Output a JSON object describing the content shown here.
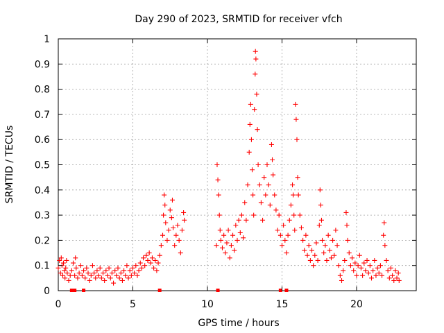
{
  "chart_data": {
    "type": "scatter",
    "title": "Day 290 of 2023, SRMTID for receiver vfch",
    "xlabel": "GPS time / hours",
    "ylabel": "SRMTID / TECUs",
    "xlim": [
      0,
      24
    ],
    "ylim": [
      0,
      1
    ],
    "x_ticks": [
      0,
      5,
      10,
      15,
      20
    ],
    "x_tick_labels": [
      "0",
      "5",
      "10",
      "15",
      "20"
    ],
    "y_ticks": [
      0,
      0.1,
      0.2,
      0.3,
      0.4,
      0.5,
      0.6,
      0.7,
      0.8,
      0.9,
      1
    ],
    "y_tick_labels": [
      "0",
      "0.1",
      "0.2",
      "0.3",
      "0.4",
      "0.5",
      "0.6",
      "0.7",
      "0.8",
      "0.9",
      "1"
    ],
    "grid": true,
    "marker": "+",
    "color": "#ff0000",
    "series": [
      {
        "name": "SRMTID",
        "points": [
          [
            0.0,
            0.09
          ],
          [
            0.08,
            0.12
          ],
          [
            0.15,
            0.07
          ],
          [
            0.2,
            0.13
          ],
          [
            0.25,
            0.1
          ],
          [
            0.3,
            0.06
          ],
          [
            0.35,
            0.11
          ],
          [
            0.4,
            0.08
          ],
          [
            0.45,
            0.05
          ],
          [
            0.5,
            0.09
          ],
          [
            0.55,
            0.12
          ],
          [
            0.6,
            0.07
          ],
          [
            0.7,
            0.04
          ],
          [
            0.8,
            0.06
          ],
          [
            0.9,
            0.08
          ],
          [
            1.0,
            0.11
          ],
          [
            1.1,
            0.06
          ],
          [
            1.15,
            0.13
          ],
          [
            1.2,
            0.09
          ],
          [
            1.3,
            0.05
          ],
          [
            1.4,
            0.07
          ],
          [
            1.5,
            0.1
          ],
          [
            1.6,
            0.06
          ],
          [
            1.7,
            0.08
          ],
          [
            1.8,
            0.05
          ],
          [
            1.9,
            0.09
          ],
          [
            2.0,
            0.07
          ],
          [
            2.1,
            0.04
          ],
          [
            2.2,
            0.06
          ],
          [
            2.3,
            0.1
          ],
          [
            2.4,
            0.07
          ],
          [
            2.5,
            0.05
          ],
          [
            2.6,
            0.08
          ],
          [
            2.7,
            0.06
          ],
          [
            2.8,
            0.09
          ],
          [
            2.9,
            0.05
          ],
          [
            3.0,
            0.07
          ],
          [
            3.1,
            0.04
          ],
          [
            3.2,
            0.08
          ],
          [
            3.3,
            0.06
          ],
          [
            3.4,
            0.09
          ],
          [
            3.5,
            0.05
          ],
          [
            3.6,
            0.07
          ],
          [
            3.7,
            0.03
          ],
          [
            3.8,
            0.08
          ],
          [
            3.9,
            0.06
          ],
          [
            4.0,
            0.09
          ],
          [
            4.1,
            0.05
          ],
          [
            4.2,
            0.07
          ],
          [
            4.3,
            0.04
          ],
          [
            4.4,
            0.08
          ],
          [
            4.5,
            0.06
          ],
          [
            4.6,
            0.1
          ],
          [
            4.7,
            0.05
          ],
          [
            4.8,
            0.08
          ],
          [
            4.9,
            0.06
          ],
          [
            5.0,
            0.09
          ],
          [
            5.1,
            0.07
          ],
          [
            5.2,
            0.1
          ],
          [
            5.3,
            0.06
          ],
          [
            5.4,
            0.08
          ],
          [
            5.5,
            0.11
          ],
          [
            5.6,
            0.09
          ],
          [
            5.7,
            0.13
          ],
          [
            5.8,
            0.1
          ],
          [
            5.9,
            0.14
          ],
          [
            6.0,
            0.12
          ],
          [
            6.1,
            0.15
          ],
          [
            6.2,
            0.11
          ],
          [
            6.3,
            0.13
          ],
          [
            6.4,
            0.09
          ],
          [
            6.5,
            0.12
          ],
          [
            6.6,
            0.08
          ],
          [
            6.7,
            0.11
          ],
          [
            6.8,
            0.14
          ],
          [
            6.9,
            0.18
          ],
          [
            7.0,
            0.22
          ],
          [
            7.05,
            0.3
          ],
          [
            7.1,
            0.38
          ],
          [
            7.15,
            0.34
          ],
          [
            7.2,
            0.27
          ],
          [
            7.3,
            0.2
          ],
          [
            7.4,
            0.24
          ],
          [
            7.5,
            0.32
          ],
          [
            7.6,
            0.29
          ],
          [
            7.65,
            0.36
          ],
          [
            7.7,
            0.25
          ],
          [
            7.8,
            0.18
          ],
          [
            7.9,
            0.22
          ],
          [
            8.0,
            0.26
          ],
          [
            8.1,
            0.2
          ],
          [
            8.2,
            0.15
          ],
          [
            8.3,
            0.24
          ],
          [
            8.4,
            0.31
          ],
          [
            8.45,
            0.28
          ],
          [
            10.6,
            0.18
          ],
          [
            10.65,
            0.5
          ],
          [
            10.7,
            0.44
          ],
          [
            10.75,
            0.38
          ],
          [
            10.8,
            0.3
          ],
          [
            10.85,
            0.24
          ],
          [
            10.9,
            0.2
          ],
          [
            11.0,
            0.17
          ],
          [
            11.1,
            0.22
          ],
          [
            11.2,
            0.15
          ],
          [
            11.3,
            0.19
          ],
          [
            11.4,
            0.24
          ],
          [
            11.5,
            0.13
          ],
          [
            11.6,
            0.18
          ],
          [
            11.7,
            0.22
          ],
          [
            11.8,
            0.16
          ],
          [
            11.9,
            0.26
          ],
          [
            12.0,
            0.2
          ],
          [
            12.1,
            0.28
          ],
          [
            12.2,
            0.23
          ],
          [
            12.3,
            0.3
          ],
          [
            12.4,
            0.21
          ],
          [
            12.5,
            0.35
          ],
          [
            12.6,
            0.28
          ],
          [
            12.7,
            0.42
          ],
          [
            12.8,
            0.55
          ],
          [
            12.85,
            0.66
          ],
          [
            12.9,
            0.74
          ],
          [
            12.95,
            0.6
          ],
          [
            13.0,
            0.48
          ],
          [
            13.05,
            0.38
          ],
          [
            13.1,
            0.3
          ],
          [
            13.15,
            0.72
          ],
          [
            13.2,
            0.86
          ],
          [
            13.22,
            0.95
          ],
          [
            13.25,
            0.92
          ],
          [
            13.3,
            0.78
          ],
          [
            13.35,
            0.64
          ],
          [
            13.4,
            0.5
          ],
          [
            13.5,
            0.42
          ],
          [
            13.6,
            0.35
          ],
          [
            13.7,
            0.28
          ],
          [
            13.8,
            0.45
          ],
          [
            13.9,
            0.38
          ],
          [
            14.0,
            0.5
          ],
          [
            14.1,
            0.42
          ],
          [
            14.2,
            0.34
          ],
          [
            14.3,
            0.58
          ],
          [
            14.35,
            0.52
          ],
          [
            14.4,
            0.46
          ],
          [
            14.5,
            0.38
          ],
          [
            14.6,
            0.32
          ],
          [
            14.7,
            0.24
          ],
          [
            14.8,
            0.3
          ],
          [
            14.9,
            0.22
          ],
          [
            15.0,
            0.18
          ],
          [
            15.1,
            0.26
          ],
          [
            15.2,
            0.2
          ],
          [
            15.3,
            0.15
          ],
          [
            15.4,
            0.22
          ],
          [
            15.5,
            0.28
          ],
          [
            15.6,
            0.34
          ],
          [
            15.7,
            0.42
          ],
          [
            15.75,
            0.38
          ],
          [
            15.8,
            0.3
          ],
          [
            15.85,
            0.24
          ],
          [
            15.9,
            0.74
          ],
          [
            15.95,
            0.68
          ],
          [
            16.0,
            0.6
          ],
          [
            16.05,
            0.45
          ],
          [
            16.1,
            0.38
          ],
          [
            16.2,
            0.3
          ],
          [
            16.3,
            0.25
          ],
          [
            16.4,
            0.2
          ],
          [
            16.5,
            0.16
          ],
          [
            16.6,
            0.22
          ],
          [
            16.7,
            0.14
          ],
          [
            16.8,
            0.18
          ],
          [
            16.9,
            0.12
          ],
          [
            17.0,
            0.16
          ],
          [
            17.1,
            0.1
          ],
          [
            17.2,
            0.14
          ],
          [
            17.3,
            0.19
          ],
          [
            17.4,
            0.12
          ],
          [
            17.5,
            0.26
          ],
          [
            17.55,
            0.4
          ],
          [
            17.6,
            0.34
          ],
          [
            17.65,
            0.28
          ],
          [
            17.7,
            0.2
          ],
          [
            17.8,
            0.15
          ],
          [
            17.9,
            0.18
          ],
          [
            18.0,
            0.12
          ],
          [
            18.1,
            0.22
          ],
          [
            18.2,
            0.16
          ],
          [
            18.3,
            0.13
          ],
          [
            18.4,
            0.2
          ],
          [
            18.5,
            0.14
          ],
          [
            18.6,
            0.24
          ],
          [
            18.7,
            0.18
          ],
          [
            18.8,
            0.1
          ],
          [
            18.9,
            0.06
          ],
          [
            19.0,
            0.04
          ],
          [
            19.1,
            0.08
          ],
          [
            19.2,
            0.12
          ],
          [
            19.3,
            0.31
          ],
          [
            19.35,
            0.26
          ],
          [
            19.4,
            0.2
          ],
          [
            19.5,
            0.15
          ],
          [
            19.6,
            0.1
          ],
          [
            19.7,
            0.13
          ],
          [
            19.8,
            0.08
          ],
          [
            19.9,
            0.11
          ],
          [
            20.0,
            0.06
          ],
          [
            20.1,
            0.1
          ],
          [
            20.2,
            0.14
          ],
          [
            20.3,
            0.09
          ],
          [
            20.4,
            0.06
          ],
          [
            20.5,
            0.11
          ],
          [
            20.6,
            0.08
          ],
          [
            20.7,
            0.12
          ],
          [
            20.8,
            0.07
          ],
          [
            20.9,
            0.1
          ],
          [
            21.0,
            0.05
          ],
          [
            21.1,
            0.08
          ],
          [
            21.2,
            0.12
          ],
          [
            21.3,
            0.06
          ],
          [
            21.4,
            0.09
          ],
          [
            21.5,
            0.07
          ],
          [
            21.6,
            0.1
          ],
          [
            21.7,
            0.06
          ],
          [
            21.8,
            0.22
          ],
          [
            21.85,
            0.27
          ],
          [
            21.9,
            0.18
          ],
          [
            22.0,
            0.12
          ],
          [
            22.1,
            0.08
          ],
          [
            22.2,
            0.05
          ],
          [
            22.3,
            0.09
          ],
          [
            22.4,
            0.06
          ],
          [
            22.5,
            0.04
          ],
          [
            22.6,
            0.08
          ],
          [
            22.7,
            0.05
          ],
          [
            22.8,
            0.07
          ],
          [
            22.85,
            0.04
          ]
        ],
        "zero_markers": [
          0.9,
          1.1,
          1.7,
          6.8,
          10.7,
          14.9,
          15.3
        ]
      }
    ]
  }
}
